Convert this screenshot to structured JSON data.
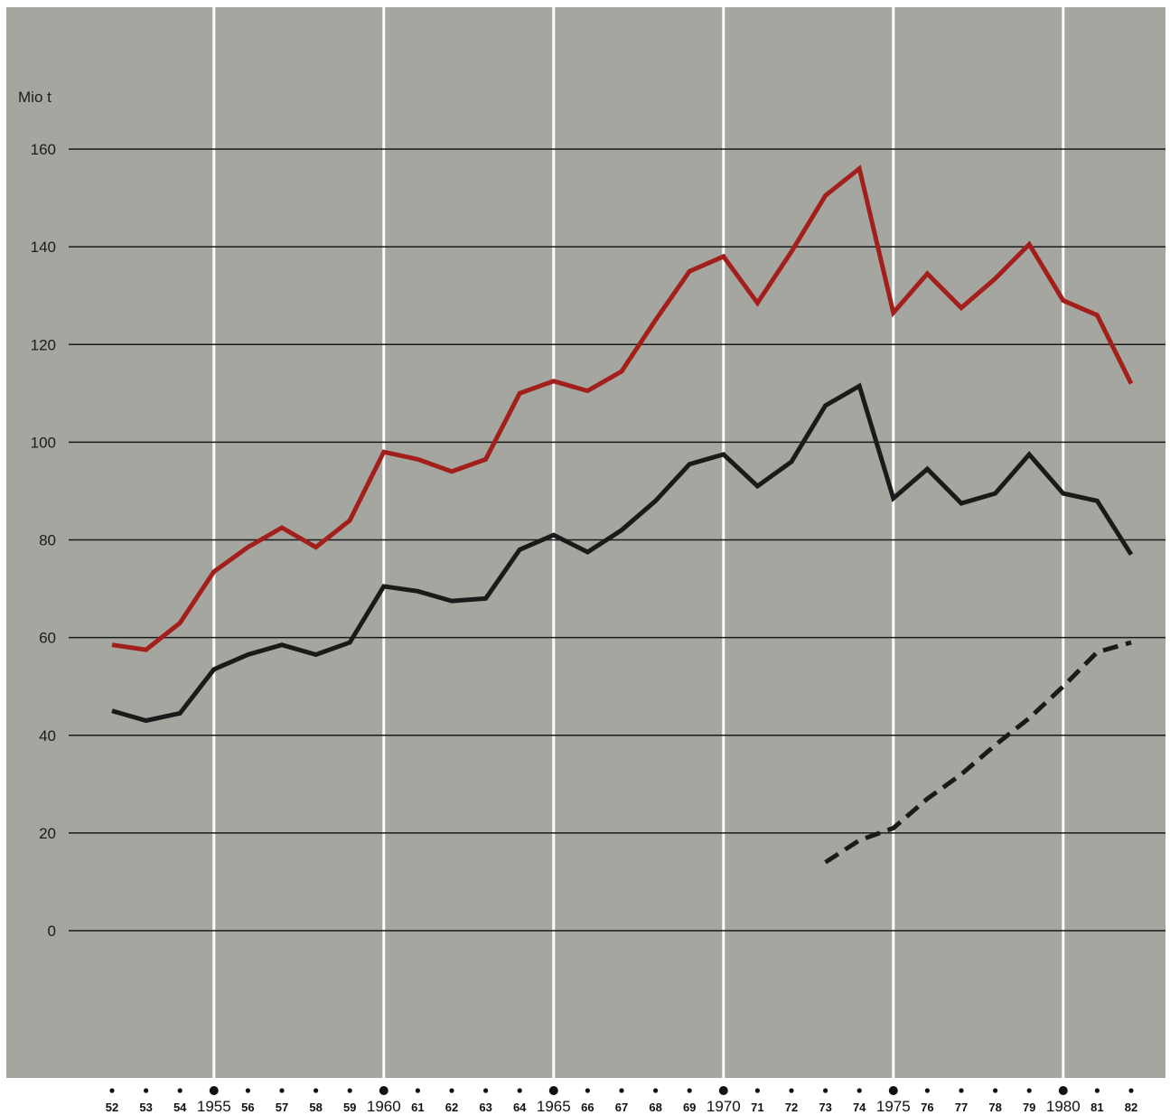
{
  "chart_data": {
    "type": "line",
    "ylabel": "Mio t",
    "ylim": [
      0,
      160
    ],
    "yticks": [
      0,
      20,
      40,
      60,
      80,
      100,
      120,
      140,
      160
    ],
    "x": [
      1952,
      1953,
      1954,
      1955,
      1956,
      1957,
      1958,
      1959,
      1960,
      1961,
      1962,
      1963,
      1964,
      1965,
      1966,
      1967,
      1968,
      1969,
      1970,
      1971,
      1972,
      1973,
      1974,
      1975,
      1976,
      1977,
      1978,
      1979,
      1980,
      1981,
      1982
    ],
    "xtick_labels": [
      "52",
      "53",
      "54",
      "1955",
      "56",
      "57",
      "58",
      "59",
      "1960",
      "61",
      "62",
      "63",
      "64",
      "1965",
      "66",
      "67",
      "68",
      "69",
      "1970",
      "71",
      "72",
      "73",
      "74",
      "1975",
      "76",
      "77",
      "78",
      "79",
      "1980",
      "81",
      "82"
    ],
    "grid": true,
    "colors": {
      "background": "#a4a69f",
      "grid": "#1a1a1a",
      "vgrid": "#ffffff",
      "red_series": "#a31f1c",
      "black_series": "#1a1a1a",
      "dashed_series": "#1a1a1a"
    },
    "series": [
      {
        "color": "red",
        "style": "solid",
        "x": [
          1952,
          1953,
          1954,
          1955,
          1956,
          1957,
          1958,
          1959,
          1960,
          1961,
          1962,
          1963,
          1964,
          1965,
          1966,
          1967,
          1968,
          1969,
          1970,
          1971,
          1972,
          1973,
          1974,
          1975,
          1976,
          1977,
          1978,
          1979,
          1980,
          1981,
          1982
        ],
        "values": [
          58.5,
          57.5,
          63,
          73.5,
          78.5,
          82.5,
          78.5,
          84,
          98,
          96.5,
          94,
          96.5,
          110,
          112.5,
          110.5,
          114.5,
          125,
          135,
          138,
          128.5,
          139,
          150.5,
          156,
          126.5,
          134.5,
          127.5,
          133.5,
          140.5,
          129,
          126,
          112
        ]
      },
      {
        "color": "black",
        "style": "solid",
        "x": [
          1952,
          1953,
          1954,
          1955,
          1956,
          1957,
          1958,
          1959,
          1960,
          1961,
          1962,
          1963,
          1964,
          1965,
          1966,
          1967,
          1968,
          1969,
          1970,
          1971,
          1972,
          1973,
          1974,
          1975,
          1976,
          1977,
          1978,
          1979,
          1980,
          1981,
          1982
        ],
        "values": [
          45,
          43,
          44.5,
          53.5,
          56.5,
          58.5,
          56.5,
          59,
          70.5,
          69.5,
          67.5,
          68,
          78,
          81,
          77.5,
          82,
          88,
          95.5,
          97.5,
          91,
          96,
          107.5,
          111.5,
          88.5,
          94.5,
          87.5,
          89.5,
          97.5,
          89.5,
          88,
          77
        ]
      },
      {
        "color": "black",
        "style": "dashed",
        "x": [
          1973,
          1974,
          1975,
          1976,
          1977,
          1978,
          1979,
          1980,
          1981,
          1982
        ],
        "values": [
          14,
          18.5,
          21,
          27,
          32,
          38,
          43.5,
          50,
          57,
          59
        ]
      }
    ]
  }
}
